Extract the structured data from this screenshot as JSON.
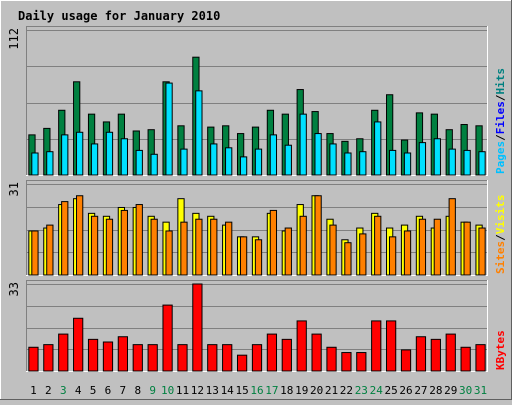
{
  "chart_data": {
    "type": "bar",
    "title": "Daily usage for January 2010",
    "categories": [
      "1",
      "2",
      "3",
      "4",
      "5",
      "6",
      "7",
      "8",
      "9",
      "10",
      "11",
      "12",
      "13",
      "14",
      "15",
      "16",
      "17",
      "18",
      "19",
      "20",
      "21",
      "22",
      "23",
      "24",
      "25",
      "26",
      "27",
      "28",
      "29",
      "30",
      "31"
    ],
    "weekend_days": [
      "3",
      "9",
      "10",
      "16",
      "17",
      "23",
      "24",
      "30",
      "31"
    ],
    "panels": [
      {
        "id": "hits-files-pages",
        "max_label": "112",
        "ylim": [
          0,
          112
        ],
        "legend": [
          "Pages",
          "Files",
          "Hits"
        ],
        "series": [
          {
            "name": "Hits",
            "color": "#008040",
            "values": [
              31,
              36,
              50,
              72,
              47,
              41,
              47,
              34,
              35,
              72,
              38,
              91,
              37,
              38,
              32,
              37,
              50,
              47,
              66,
              49,
              32,
              26,
              28,
              50,
              62,
              27,
              48,
              47,
              35,
              39,
              38
            ]
          },
          {
            "name": "Files",
            "color": "#00E0FF",
            "values": [
              17,
              18,
              31,
              33,
              24,
              33,
              28,
              19,
              16,
              71,
              20,
              65,
              24,
              21,
              14,
              20,
              31,
              23,
              47,
              32,
              24,
              17,
              18,
              41,
              19,
              17,
              25,
              28,
              20,
              19,
              18
            ]
          },
          {
            "name": "Pages",
            "color": "#00E0FF",
            "values": []
          }
        ]
      },
      {
        "id": "visits-sites",
        "max_label": "31",
        "ylim": [
          0,
          31
        ],
        "legend": [
          "Sites",
          "Visits"
        ],
        "series": [
          {
            "name": "Visits",
            "color": "#FFFF00",
            "values": [
              15,
              16,
              24,
              26,
              21,
              20,
              23,
              23,
              20,
              18,
              26,
              21,
              20,
              17,
              13,
              13,
              21,
              15,
              24,
              27,
              19,
              12,
              16,
              21,
              16,
              17,
              20,
              16,
              20,
              18,
              17
            ]
          },
          {
            "name": "Sites",
            "color": "#FF8000",
            "values": [
              15,
              17,
              25,
              27,
              20,
              19,
              22,
              24,
              19,
              15,
              18,
              19,
              19,
              18,
              13,
              12,
              22,
              16,
              20,
              27,
              17,
              11,
              14,
              20,
              13,
              15,
              19,
              19,
              26,
              18,
              16
            ]
          }
        ]
      },
      {
        "id": "kbytes",
        "max_label": "33",
        "ylim": [
          0,
          33
        ],
        "legend": [
          "KBytes"
        ],
        "series": [
          {
            "name": "KBytes",
            "color": "#FF0000",
            "values": [
              9,
              10,
              14,
              20,
              12,
              11,
              13,
              10,
              10,
              25,
              10,
              33,
              10,
              10,
              6,
              10,
              14,
              12,
              19,
              14,
              9,
              7,
              7,
              19,
              19,
              8,
              13,
              12,
              14,
              9,
              10
            ]
          }
        ]
      }
    ]
  },
  "colors": {
    "background": "#C0C0C0",
    "title": "#0000FF",
    "plot_bg": "#C0C0C0",
    "grid": "#808080",
    "weekday_label": "#000000",
    "weekend_label": "#008040",
    "legend_pages": "#00C0FF",
    "legend_files": "#0000FF",
    "legend_hits": "#008080",
    "legend_sites": "#FF8000",
    "legend_visits": "#FFFF00",
    "legend_kbytes": "#FF0000",
    "legend_sep": "#000000"
  }
}
